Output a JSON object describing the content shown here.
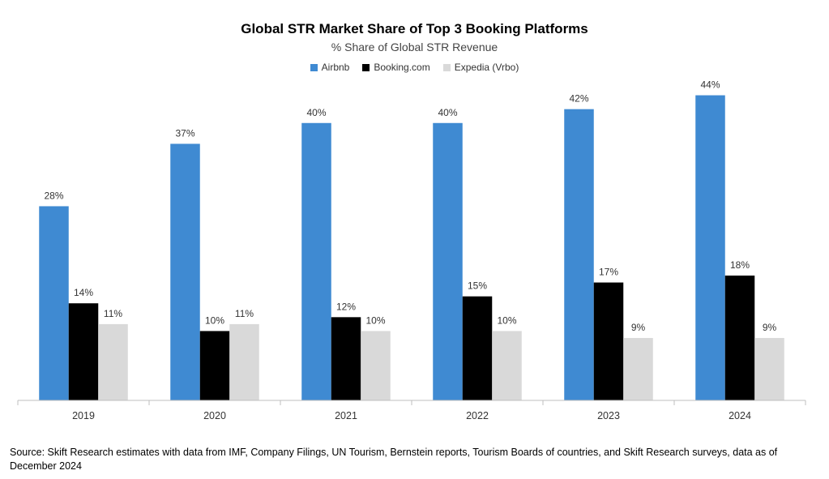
{
  "chart_data": {
    "type": "bar",
    "title": "Global STR Market Share of Top 3 Booking Platforms",
    "subtitle": "% Share of Global STR Revenue",
    "categories": [
      "2019",
      "2020",
      "2021",
      "2022",
      "2023",
      "2024"
    ],
    "series": [
      {
        "name": "Airbnb",
        "color": "#3F8AD2",
        "values": [
          28,
          37,
          40,
          40,
          42,
          44
        ],
        "labels": [
          "28%",
          "37%",
          "40%",
          "40%",
          "42%",
          "44%"
        ]
      },
      {
        "name": "Booking.com",
        "color": "#000000",
        "values": [
          14,
          10,
          12,
          15,
          17,
          18
        ],
        "labels": [
          "14%",
          "10%",
          "12%",
          "15%",
          "17%",
          "18%"
        ]
      },
      {
        "name": "Expedia (Vrbo)",
        "color": "#D9D9D9",
        "values": [
          11,
          11,
          10,
          10,
          9,
          9
        ],
        "labels": [
          "11%",
          "11%",
          "10%",
          "10%",
          "9%",
          "9%"
        ]
      }
    ],
    "ylim": [
      0,
      45
    ],
    "xlabel": "",
    "ylabel": "",
    "legend_position": "top-center",
    "grid": false
  },
  "footer": {
    "source": "Source: Skift Research estimates with data from IMF, Company Filings, UN Tourism, Bernstein reports, Tourism Boards of countries, and Skift Research surveys, data as of December 2024"
  }
}
